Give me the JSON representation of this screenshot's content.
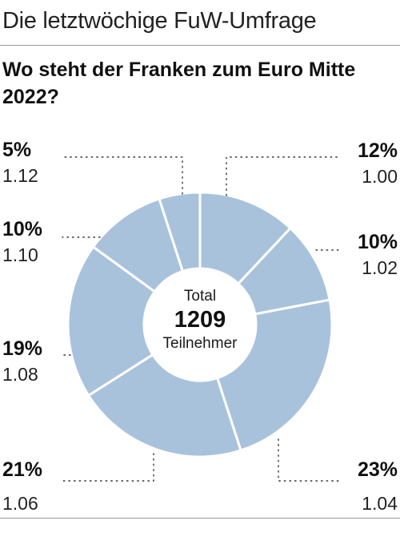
{
  "header": {
    "kicker": "Die letztwöchige FuW-Umfrage",
    "headline": "Wo steht der Franken zum Euro Mitte 2022?"
  },
  "center": {
    "label_top": "Total",
    "total": "1209",
    "label_bottom": "Teilnehmer"
  },
  "colors": {
    "slice_fill": "#a9c2dc",
    "slice_border": "#ffffff"
  },
  "chart_data": {
    "type": "pie",
    "style": "donut",
    "total_respondents": 1209,
    "categories": [
      "1.00",
      "1.02",
      "1.04",
      "1.06",
      "1.08",
      "1.10",
      "1.12"
    ],
    "values": [
      12,
      10,
      23,
      21,
      19,
      10,
      5
    ],
    "unit": "%",
    "labels": [
      {
        "pct": "12%",
        "value": "1.00"
      },
      {
        "pct": "10%",
        "value": "1.02"
      },
      {
        "pct": "23%",
        "value": "1.04"
      },
      {
        "pct": "21%",
        "value": "1.06"
      },
      {
        "pct": "19%",
        "value": "1.08"
      },
      {
        "pct": "10%",
        "value": "1.10"
      },
      {
        "pct": "5%",
        "value": "1.12"
      }
    ]
  }
}
